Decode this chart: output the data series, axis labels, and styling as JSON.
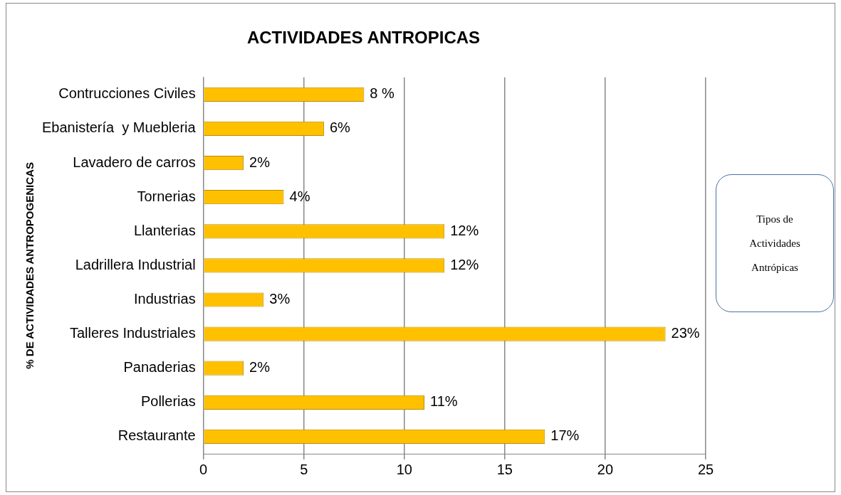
{
  "chart_data": {
    "type": "bar",
    "orientation": "horizontal",
    "title": "ACTIVIDADES ANTROPICAS",
    "ylabel": "% DE ACTIVIDADES ANTROPOGENICAS",
    "categories": [
      "Contrucciones Civiles",
      "Ebanistería  y Muebleria",
      "Lavadero de carros",
      "Tornerias",
      "Llanterias",
      "Ladrillera Industrial",
      "Industrias",
      "Talleres Industriales",
      "Panaderias",
      "Pollerias",
      "Restaurante"
    ],
    "values": [
      8,
      6,
      2,
      4,
      12,
      12,
      3,
      23,
      2,
      11,
      17
    ],
    "value_labels": [
      "8 %",
      "6%",
      "2%",
      "4%",
      "12%",
      "12%",
      "3%",
      "23%",
      "2%",
      "11%",
      "17%"
    ],
    "color": "#ffc000",
    "xlim": [
      0,
      25
    ],
    "xticks": [
      0,
      5,
      10,
      15,
      20,
      25
    ],
    "grid": "x",
    "legend": false,
    "annotations": [
      "Tipos de Actividades Antrópicas"
    ]
  }
}
